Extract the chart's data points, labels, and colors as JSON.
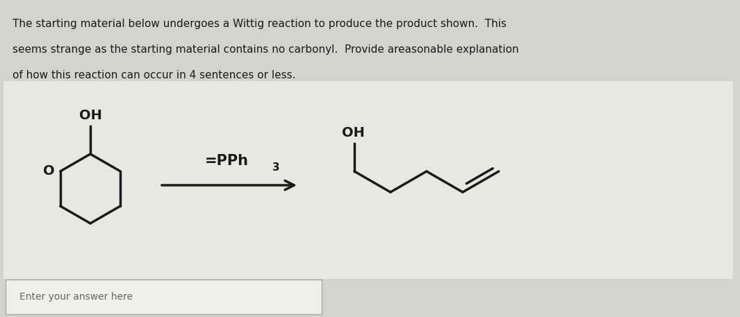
{
  "bg_color": "#d4d4cc",
  "text_bg_color": "#e8e8e0",
  "box_bg_color": "#f0f0e8",
  "text_lines": [
    "The starting material below undergoes a Wittig reaction to produce the product shown.  This",
    "seems strange as the starting material contains no carbonyl.  Provide areasonable explanation",
    "of how this reaction can occur in 4 sentences or less."
  ],
  "reagent_text": "=PPh3",
  "answer_placeholder": "Enter your answer here",
  "line_color": "#1a1a1a",
  "text_color": "#1a1a1a",
  "fig_width": 10.65,
  "fig_height": 4.57,
  "dpi": 100
}
